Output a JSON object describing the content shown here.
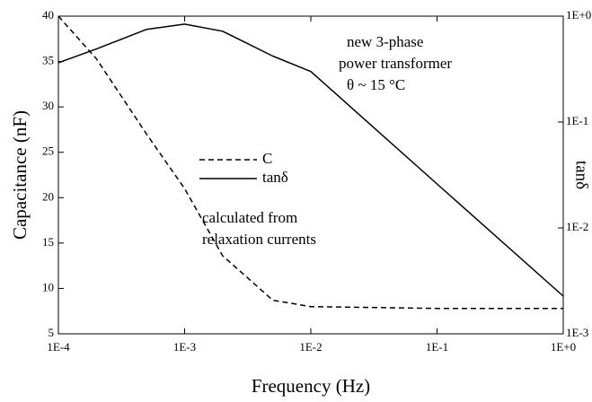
{
  "chart_data": {
    "type": "line",
    "xlabel": "Frequency (Hz)",
    "ylabel": "Capacitance  (nF)",
    "y2label": "tanδ",
    "xscale": "log",
    "y2scale": "log",
    "xlim": [
      0.0001,
      1
    ],
    "xticks": [
      {
        "value": 0.0001,
        "label": "1E-4"
      },
      {
        "value": 0.001,
        "label": "1E-3"
      },
      {
        "value": 0.01,
        "label": "1E-2"
      },
      {
        "value": 0.1,
        "label": "1E-1"
      },
      {
        "value": 1,
        "label": "1E+0"
      }
    ],
    "ylim": [
      5,
      40
    ],
    "yticks": [
      5,
      10,
      15,
      20,
      25,
      30,
      35,
      40
    ],
    "y2lim": [
      0.001,
      1
    ],
    "y2ticks": [
      {
        "value": 0.001,
        "label": "1E-3"
      },
      {
        "value": 0.01,
        "label": "1E-2"
      },
      {
        "value": 0.1,
        "label": "1E-1"
      },
      {
        "value": 1,
        "label": "1E+0"
      }
    ],
    "x": [
      0.0001,
      0.0002,
      0.0005,
      0.001,
      0.002,
      0.005,
      0.01,
      0.1,
      1
    ],
    "series": [
      {
        "name": "C",
        "color": "#000000",
        "dash": true,
        "values": [
          40,
          35.3,
          27,
          21,
          13.6,
          8.7,
          8.0,
          7.8,
          7.8
        ]
      },
      {
        "name": "tanδ",
        "color": "#000000",
        "dash": false,
        "axis": "y2",
        "values": [
          0.363,
          0.49,
          0.75,
          0.84,
          0.72,
          0.42,
          0.3,
          0.026,
          0.00227
        ]
      }
    ],
    "annotations": [
      "new 3-phase",
      "power transformer",
      "θ ~ 15 °C",
      "calculated from",
      "relaxation currents"
    ]
  }
}
